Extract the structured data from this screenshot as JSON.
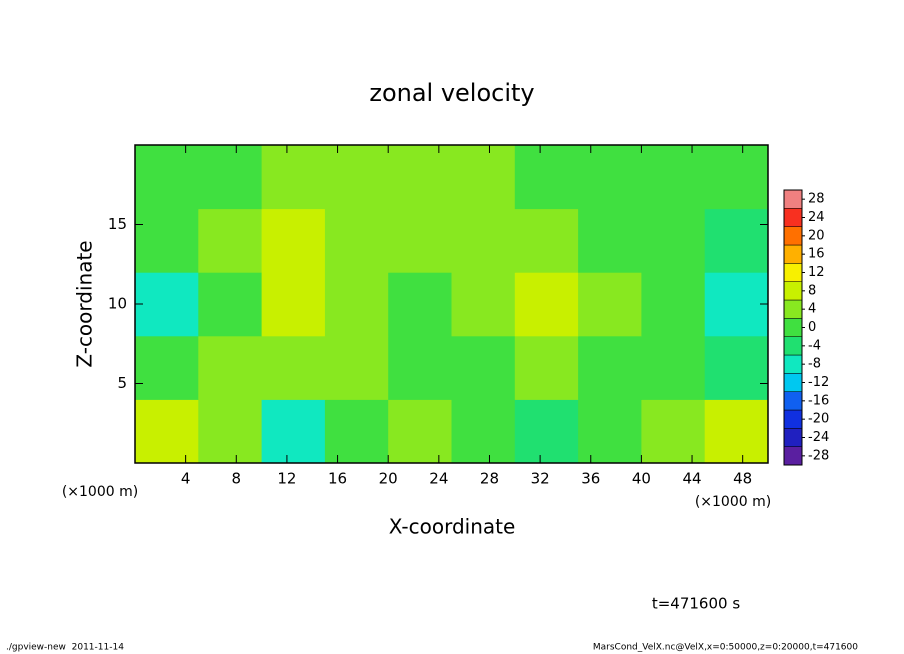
{
  "chart_data": {
    "type": "heatmap",
    "title": "zonal velocity",
    "x_label": "X-coordinate",
    "y_label": "Z-coordinate",
    "x_unit": "(×1000 m)",
    "xbins": [
      0,
      5,
      10,
      15,
      20,
      25,
      30,
      35,
      40,
      45,
      50
    ],
    "ybins": [
      0,
      4,
      8,
      12,
      16,
      20
    ],
    "values": [
      [
        8,
        2,
        -8,
        -2,
        2,
        -2,
        -4,
        0,
        2,
        8
      ],
      [
        -2,
        2,
        4,
        2,
        -2,
        0,
        2,
        -2,
        0,
        -4
      ],
      [
        -8,
        0,
        6,
        2,
        0,
        2,
        8,
        2,
        0,
        -8
      ],
      [
        -2,
        2,
        6,
        4,
        2,
        2,
        2,
        0,
        0,
        -4
      ],
      [
        0,
        0,
        2,
        2,
        2,
        2,
        0,
        0,
        0,
        0
      ]
    ],
    "xlim": [
      0,
      50
    ],
    "xticks": [
      4,
      8,
      12,
      16,
      20,
      24,
      28,
      32,
      36,
      40,
      44,
      48
    ],
    "ylim": [
      0,
      20
    ],
    "yticks": [
      5,
      10,
      15
    ],
    "colorbar": {
      "lim": [
        -30,
        30
      ],
      "levels": [
        -30,
        -26,
        -22,
        -18,
        -14,
        -10,
        -6,
        -2,
        2,
        6,
        10,
        14,
        18,
        22,
        26,
        30
      ],
      "colors": [
        "#5a1fa0",
        "#2020c0",
        "#1030e0",
        "#1060f0",
        "#00c8f0",
        "#10e8c0",
        "#20e070",
        "#40e040",
        "#88e820",
        "#c8f000",
        "#f8f000",
        "#ffb000",
        "#ff7000",
        "#f83020",
        "#f08080"
      ],
      "ticks": [
        -28,
        -24,
        -20,
        -16,
        -12,
        -8,
        -4,
        0,
        4,
        8,
        12,
        16,
        20,
        24,
        28
      ]
    },
    "annotation": "t=471600 s",
    "footer_left": "./gpview-new  2011-11-14",
    "footer_right": "MarsCond_VelX.nc@VelX,x=0:50000,z=0:20000,t=471600"
  }
}
